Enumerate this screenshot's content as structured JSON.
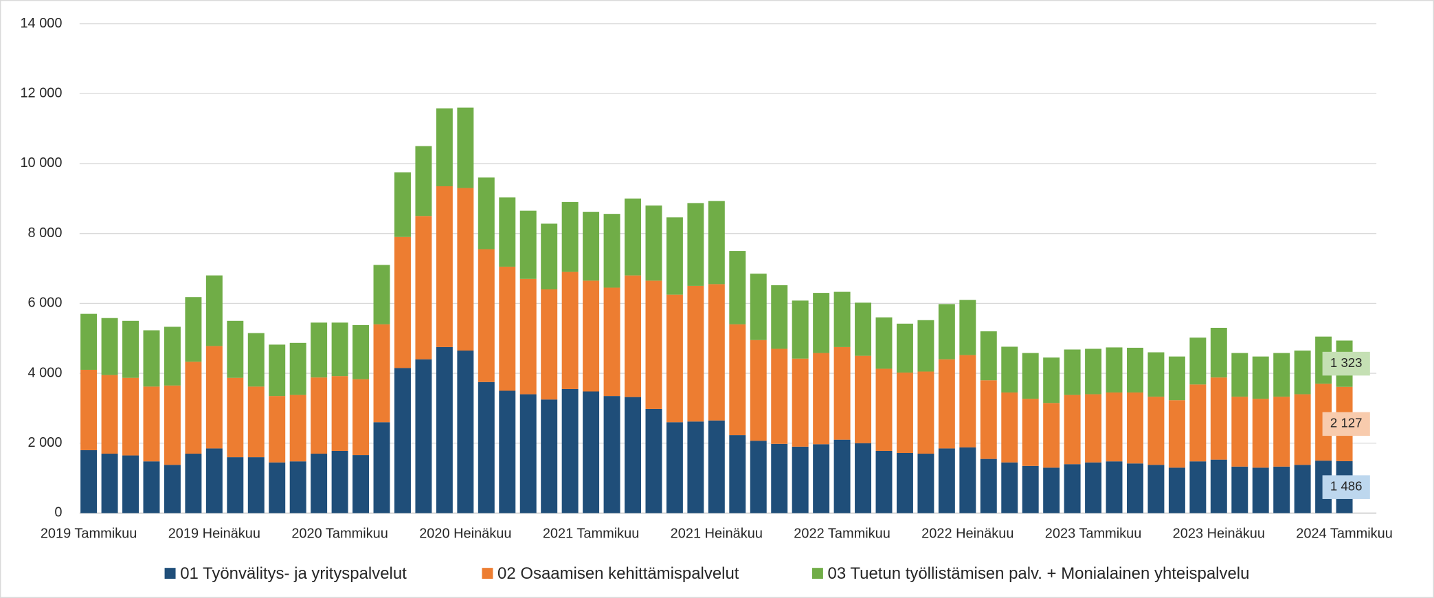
{
  "chart_data": {
    "type": "stacked-bar",
    "categories": [
      "2019 Tammikuu",
      null,
      null,
      null,
      null,
      null,
      "2019 Heinäkuu",
      null,
      null,
      null,
      null,
      null,
      "2020 Tammikuu",
      null,
      null,
      null,
      null,
      null,
      "2020 Heinäkuu",
      null,
      null,
      null,
      null,
      null,
      "2021 Tammikuu",
      null,
      null,
      null,
      null,
      null,
      "2021 Heinäkuu",
      null,
      null,
      null,
      null,
      null,
      "2022 Tammikuu",
      null,
      null,
      null,
      null,
      null,
      "2022 Heinäkuu",
      null,
      null,
      null,
      null,
      null,
      "2023 Tammikuu",
      null,
      null,
      null,
      null,
      null,
      "2023 Heinäkuu",
      null,
      null,
      null,
      null,
      null,
      "2024 Tammikuu"
    ],
    "series": [
      {
        "name": "01 Työnvälitys- ja yrityspalvelut",
        "color": "#1f4e79",
        "label_color": "#bdd7ee",
        "values": [
          1800,
          1700,
          1650,
          1480,
          1380,
          1700,
          1850,
          1600,
          1600,
          1450,
          1480,
          1700,
          1780,
          1660,
          2600,
          4150,
          4400,
          4750,
          4650,
          3750,
          3500,
          3400,
          3250,
          3550,
          3480,
          3350,
          3320,
          2980,
          2600,
          2620,
          2650,
          2230,
          2070,
          1980,
          1900,
          1970,
          2100,
          2000,
          1780,
          1720,
          1700,
          1850,
          1880,
          1550,
          1450,
          1350,
          1300,
          1400,
          1450,
          1480,
          1420,
          1380,
          1300,
          1480,
          1530,
          1330,
          1300,
          1330,
          1380,
          1500,
          1486
        ],
        "value_labels": [
          null,
          null,
          null,
          null,
          null,
          null,
          null,
          null,
          null,
          null,
          null,
          null,
          null,
          null,
          null,
          null,
          null,
          null,
          null,
          null,
          null,
          null,
          null,
          null,
          null,
          null,
          null,
          null,
          null,
          null,
          null,
          null,
          null,
          null,
          null,
          null,
          null,
          null,
          null,
          null,
          null,
          null,
          null,
          null,
          null,
          null,
          null,
          null,
          null,
          null,
          null,
          null,
          null,
          null,
          null,
          null,
          null,
          null,
          null,
          null,
          "1 486"
        ]
      },
      {
        "name": "02 Osaamisen kehittämispalvelut",
        "color": "#ed7d31",
        "label_color": "#f8cbad",
        "values": [
          2300,
          2250,
          2220,
          2140,
          2270,
          2630,
          2930,
          2270,
          2020,
          1900,
          1900,
          2180,
          2140,
          2170,
          2800,
          3750,
          4100,
          4600,
          4650,
          3800,
          3550,
          3300,
          3150,
          3350,
          3170,
          3100,
          3480,
          3670,
          3650,
          3880,
          3900,
          3170,
          2880,
          2720,
          2520,
          2610,
          2650,
          2500,
          2350,
          2300,
          2350,
          2550,
          2640,
          2250,
          2000,
          1920,
          1850,
          1980,
          1950,
          1970,
          2030,
          1950,
          1930,
          2200,
          2350,
          2000,
          1970,
          2000,
          2020,
          2200,
          2127
        ],
        "value_labels": [
          null,
          null,
          null,
          null,
          null,
          null,
          null,
          null,
          null,
          null,
          null,
          null,
          null,
          null,
          null,
          null,
          null,
          null,
          null,
          null,
          null,
          null,
          null,
          null,
          null,
          null,
          null,
          null,
          null,
          null,
          null,
          null,
          null,
          null,
          null,
          null,
          null,
          null,
          null,
          null,
          null,
          null,
          null,
          null,
          null,
          null,
          null,
          null,
          null,
          null,
          null,
          null,
          null,
          null,
          null,
          null,
          null,
          null,
          null,
          null,
          "2 127"
        ]
      },
      {
        "name": "03 Tuetun työllistämisen palv. + Monialainen yhteispalvelu",
        "color": "#70ad47",
        "label_color": "#c5e0b4",
        "values": [
          1600,
          1630,
          1630,
          1610,
          1680,
          1850,
          2020,
          1630,
          1530,
          1470,
          1490,
          1570,
          1530,
          1550,
          1700,
          1850,
          2000,
          2230,
          2300,
          2050,
          1980,
          1950,
          1880,
          2000,
          1970,
          2110,
          2200,
          2150,
          2210,
          2370,
          2380,
          2100,
          1900,
          1820,
          1660,
          1720,
          1580,
          1520,
          1470,
          1400,
          1470,
          1580,
          1580,
          1400,
          1310,
          1310,
          1300,
          1300,
          1300,
          1290,
          1280,
          1270,
          1250,
          1340,
          1420,
          1250,
          1210,
          1250,
          1250,
          1350,
          1323
        ],
        "value_labels": [
          null,
          null,
          null,
          null,
          null,
          null,
          null,
          null,
          null,
          null,
          null,
          null,
          null,
          null,
          null,
          null,
          null,
          null,
          null,
          null,
          null,
          null,
          null,
          null,
          null,
          null,
          null,
          null,
          null,
          null,
          null,
          null,
          null,
          null,
          null,
          null,
          null,
          null,
          null,
          null,
          null,
          null,
          null,
          null,
          null,
          null,
          null,
          null,
          null,
          null,
          null,
          null,
          null,
          null,
          null,
          null,
          null,
          null,
          null,
          null,
          "1 323"
        ]
      }
    ],
    "ylim": [
      0,
      14000
    ],
    "yticks": [
      0,
      {
        "value": 2000,
        "label": "2 000"
      },
      {
        "value": 4000,
        "label": "4 000"
      },
      {
        "value": 6000,
        "label": "6 000"
      },
      {
        "value": 8000,
        "label": "8 000"
      },
      {
        "value": 10000,
        "label": "10 000"
      },
      {
        "value": 12000,
        "label": "12 000"
      },
      {
        "value": 14000,
        "label": "14 000"
      }
    ],
    "grid": true
  }
}
